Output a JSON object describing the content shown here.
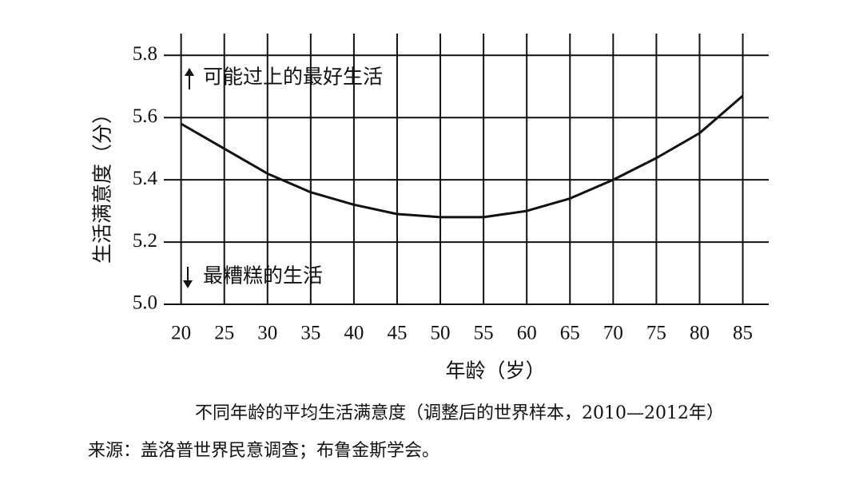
{
  "chart_data": {
    "type": "line",
    "y_label": "生活满意度（分）",
    "x_label": "年龄（岁）",
    "caption": "不同年龄的平均生活满意度（调整后的世界样本，2010—2012年）",
    "source": "来源：盖洛普世界民意调查；布鲁金斯学会。",
    "annotation_top": "可能过上的最好生活",
    "annotation_bottom": "最糟糕的生活",
    "x": [
      20,
      25,
      30,
      35,
      40,
      45,
      50,
      55,
      60,
      65,
      70,
      75,
      80,
      85
    ],
    "series": [
      {
        "color": "#111111",
        "values": [
          5.58,
          5.5,
          5.42,
          5.36,
          5.32,
          5.29,
          5.28,
          5.28,
          5.3,
          5.34,
          5.4,
          5.47,
          5.55,
          5.67
        ]
      }
    ],
    "xlim": [
      18,
      88
    ],
    "ylim": [
      5.0,
      5.87
    ],
    "xticks": [
      20,
      25,
      30,
      35,
      40,
      45,
      50,
      55,
      60,
      65,
      70,
      75,
      80,
      85
    ],
    "yticks": [
      {
        "value": 5.0,
        "label": "5.0"
      },
      {
        "value": 5.2,
        "label": "5.2"
      },
      {
        "value": 5.4,
        "label": "5.4"
      },
      {
        "value": 5.6,
        "label": "5.6"
      },
      {
        "value": 5.8,
        "label": "5.8"
      }
    ],
    "grid": true
  }
}
